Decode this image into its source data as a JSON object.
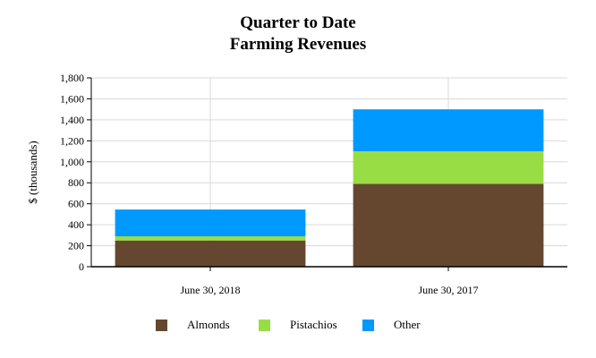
{
  "chart_data": {
    "type": "bar",
    "stacked": true,
    "title": "Quarter to Date",
    "subtitle": "Farming Revenues",
    "xlabel": "",
    "ylabel": "$ (thousands)",
    "ylim": [
      0,
      1800
    ],
    "yticks": [
      0,
      200,
      400,
      600,
      800,
      1000,
      1200,
      1400,
      1600,
      1800
    ],
    "ytick_labels": [
      "0",
      "200",
      "400",
      "600",
      "800",
      "1,000",
      "1,200",
      "1,400",
      "1,600",
      "1,800"
    ],
    "categories": [
      "June 30, 2018",
      "June 30, 2017"
    ],
    "series": [
      {
        "name": "Almonds",
        "color": "#65472f",
        "values": [
          250,
          790
        ]
      },
      {
        "name": "Pistachios",
        "color": "#99dd44",
        "values": [
          40,
          310
        ]
      },
      {
        "name": "Other",
        "color": "#0099ff",
        "values": [
          255,
          400
        ]
      }
    ],
    "grid": true,
    "legend_position": "bottom"
  }
}
